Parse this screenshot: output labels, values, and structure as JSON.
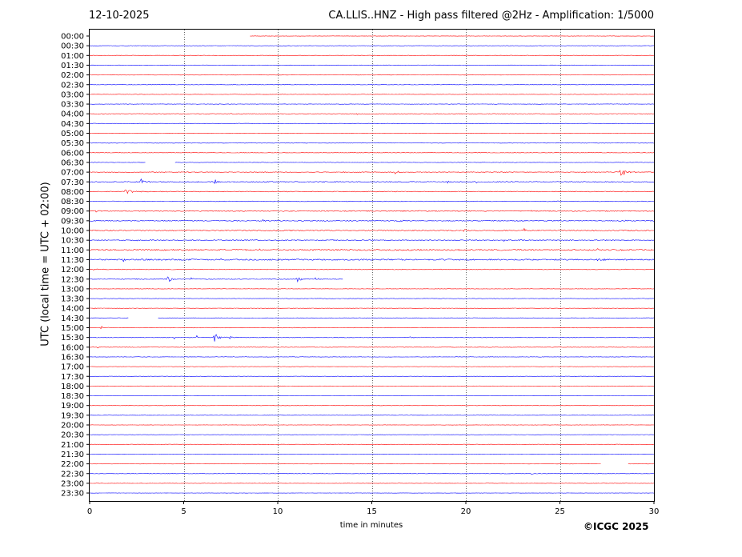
{
  "header": {
    "date": "12-10-2025",
    "title": "CA.LLIS..HNZ - High pass filtered @2Hz - Amplification: 1/5000"
  },
  "footer": {
    "copyright": "©ICGC 2025"
  },
  "chart_data": {
    "type": "line",
    "title": "CA.LLIS..HNZ - High pass filtered @2Hz - Amplification: 1/5000",
    "xlabel": "time in minutes",
    "ylabel": "UTC (local time = UTC + 02:00)",
    "xlim": [
      0,
      30
    ],
    "x_ticks": [
      "0",
      "5",
      "10",
      "15",
      "20",
      "25",
      "30"
    ],
    "vertical_gridlines_at": [
      5,
      10,
      15,
      20,
      25
    ],
    "grid": "vertical dotted",
    "series_colors": [
      "#ff0000",
      "#0000ff"
    ],
    "y_labels": [
      "00:00",
      "00:30",
      "01:00",
      "01:30",
      "02:00",
      "02:30",
      "03:00",
      "03:30",
      "04:00",
      "04:30",
      "05:00",
      "05:30",
      "06:00",
      "06:30",
      "07:00",
      "07:30",
      "08:00",
      "08:30",
      "09:00",
      "09:30",
      "10:00",
      "10:30",
      "11:00",
      "11:30",
      "12:00",
      "12:30",
      "13:00",
      "13:30",
      "14:00",
      "14:30",
      "15:00",
      "15:30",
      "16:00",
      "16:30",
      "17:00",
      "17:30",
      "18:00",
      "18:30",
      "19:00",
      "19:30",
      "20:00",
      "20:30",
      "21:00",
      "21:30",
      "22:00",
      "22:30",
      "23:00",
      "23:30"
    ],
    "traces": [
      {
        "noise": 0.05,
        "gaps": [
          [
            0,
            8.5
          ]
        ],
        "events": []
      },
      {
        "noise": 0.05,
        "gaps": [],
        "events": []
      },
      {
        "noise": 0.05,
        "gaps": [],
        "events": []
      },
      {
        "noise": 0.05,
        "gaps": [],
        "events": []
      },
      {
        "noise": 0.05,
        "gaps": [],
        "events": []
      },
      {
        "noise": 0.05,
        "gaps": [],
        "events": []
      },
      {
        "noise": 0.05,
        "gaps": [],
        "events": [
          [
            12.5,
            0.15,
            0.2
          ]
        ]
      },
      {
        "noise": 0.05,
        "gaps": [],
        "events": []
      },
      {
        "noise": 0.06,
        "gaps": [],
        "events": [
          [
            14.2,
            0.3,
            0.2
          ],
          [
            7.5,
            0.15,
            0.1
          ]
        ]
      },
      {
        "noise": 0.05,
        "gaps": [],
        "events": []
      },
      {
        "noise": 0.05,
        "gaps": [],
        "events": []
      },
      {
        "noise": 0.06,
        "gaps": [],
        "events": [
          [
            4.5,
            0.35,
            0.15
          ]
        ]
      },
      {
        "noise": 0.05,
        "gaps": [],
        "events": []
      },
      {
        "noise": 0.05,
        "gaps": [
          [
            3.0,
            4.5
          ]
        ],
        "events": []
      },
      {
        "noise": 0.08,
        "gaps": [],
        "events": [
          [
            16.2,
            0.7,
            0.3
          ],
          [
            28.2,
            2.2,
            0.3
          ],
          [
            13.5,
            0.2,
            0.1
          ]
        ]
      },
      {
        "noise": 0.12,
        "gaps": [],
        "events": [
          [
            2.7,
            0.9,
            0.3
          ],
          [
            6.6,
            1.1,
            0.2
          ],
          [
            19.0,
            0.7,
            0.1
          ],
          [
            20.5,
            0.6,
            0.1
          ],
          [
            11.0,
            0.3,
            0.1
          ]
        ]
      },
      {
        "noise": 0.09,
        "gaps": [],
        "events": [
          [
            1.9,
            1.0,
            0.4
          ]
        ]
      },
      {
        "noise": 0.07,
        "gaps": [],
        "events": [
          [
            24.9,
            0.2,
            0.05
          ]
        ]
      },
      {
        "noise": 0.11,
        "gaps": [],
        "events": [
          [
            0.3,
            0.3,
            0.1
          ],
          [
            23.5,
            0.3,
            0.1
          ],
          [
            16.5,
            0.25,
            0.1
          ],
          [
            17.5,
            0.3,
            0.1
          ]
        ]
      },
      {
        "noise": 0.11,
        "gaps": [],
        "events": [
          [
            9.2,
            0.6,
            0.1
          ],
          [
            16.5,
            0.3,
            0.2
          ],
          [
            28.5,
            0.3,
            0.2
          ]
        ]
      },
      {
        "noise": 0.12,
        "gaps": [],
        "events": [
          [
            19.9,
            0.6,
            0.2
          ],
          [
            23.1,
            1.0,
            0.1
          ],
          [
            22.2,
            0.4,
            0.05
          ]
        ]
      },
      {
        "noise": 0.11,
        "gaps": [],
        "events": [
          [
            2.5,
            0.4,
            0.1
          ],
          [
            22.0,
            0.3,
            0.1
          ]
        ]
      },
      {
        "noise": 0.16,
        "gaps": [],
        "events": [
          [
            27.0,
            0.3,
            0.3
          ],
          [
            9.0,
            0.3,
            0.2
          ]
        ]
      },
      {
        "noise": 0.16,
        "gaps": [],
        "events": [
          [
            1.8,
            0.4,
            0.3
          ],
          [
            7.0,
            0.5,
            0.1
          ],
          [
            27.0,
            0.5,
            0.4
          ],
          [
            28.5,
            0.4,
            0.2
          ]
        ]
      },
      {
        "noise": 0.08,
        "gaps": [],
        "events": [
          [
            0.2,
            0.3,
            0.1
          ]
        ]
      },
      {
        "noise": 0.09,
        "gaps": [
          [
            13.5,
            30
          ]
        ],
        "events": [
          [
            4.1,
            1.5,
            0.2
          ],
          [
            5.4,
            0.8,
            0.1
          ],
          [
            11.0,
            0.9,
            0.3
          ],
          [
            12.0,
            0.3,
            0.3
          ]
        ]
      },
      {
        "noise": 0.05,
        "gaps": [],
        "events": []
      },
      {
        "noise": 0.05,
        "gaps": [],
        "events": []
      },
      {
        "noise": 0.05,
        "gaps": [],
        "events": [
          [
            0.2,
            0.3,
            0.1
          ]
        ]
      },
      {
        "noise": 0.06,
        "gaps": [
          [
            2.1,
            3.6
          ]
        ],
        "events": []
      },
      {
        "noise": 0.06,
        "gaps": [],
        "events": [
          [
            0.6,
            0.4,
            0.3
          ],
          [
            10.8,
            0.2,
            0.1
          ]
        ]
      },
      {
        "noise": 0.08,
        "gaps": [],
        "events": [
          [
            4.5,
            0.9,
            0.1
          ],
          [
            5.7,
            0.6,
            0.1
          ],
          [
            6.6,
            1.2,
            0.4
          ],
          [
            7.4,
            0.6,
            0.2
          ],
          [
            17.0,
            0.2,
            0.3
          ]
        ]
      },
      {
        "noise": 0.06,
        "gaps": [],
        "events": [
          [
            0.4,
            0.3,
            0.1
          ]
        ]
      },
      {
        "noise": 0.05,
        "gaps": [],
        "events": [
          [
            8.1,
            0.2,
            0.05
          ]
        ]
      },
      {
        "noise": 0.04,
        "gaps": [],
        "events": []
      },
      {
        "noise": 0.04,
        "gaps": [],
        "events": []
      },
      {
        "noise": 0.04,
        "gaps": [],
        "events": [
          [
            21.8,
            0.2,
            0.05
          ]
        ]
      },
      {
        "noise": 0.04,
        "gaps": [],
        "events": []
      },
      {
        "noise": 0.04,
        "gaps": [],
        "events": []
      },
      {
        "noise": 0.04,
        "gaps": [],
        "events": [
          [
            11.2,
            0.2,
            0.05
          ]
        ]
      },
      {
        "noise": 0.04,
        "gaps": [],
        "events": []
      },
      {
        "noise": 0.04,
        "gaps": [],
        "events": []
      },
      {
        "noise": 0.04,
        "gaps": [],
        "events": []
      },
      {
        "noise": 0.04,
        "gaps": [],
        "events": []
      },
      {
        "noise": 0.04,
        "gaps": [
          [
            27.2,
            28.6
          ]
        ],
        "events": []
      },
      {
        "noise": 0.05,
        "gaps": [],
        "events": [
          [
            22.0,
            0.35,
            0.1
          ],
          [
            23.5,
            0.3,
            0.1
          ]
        ]
      },
      {
        "noise": 0.04,
        "gaps": [],
        "events": []
      },
      {
        "noise": 0.04,
        "gaps": [],
        "events": []
      }
    ]
  }
}
